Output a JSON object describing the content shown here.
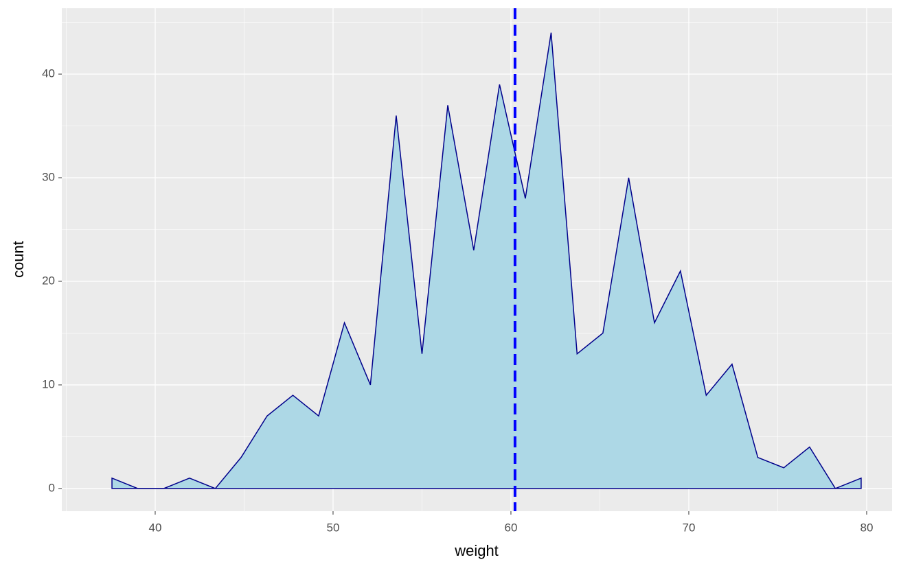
{
  "chart_data": {
    "type": "area",
    "xlabel": "weight",
    "ylabel": "count",
    "x": [
      37.57,
      39.02,
      40.48,
      41.93,
      43.38,
      44.83,
      46.29,
      47.74,
      49.19,
      50.64,
      52.1,
      53.55,
      55.0,
      56.45,
      57.91,
      59.36,
      60.81,
      62.26,
      63.72,
      65.17,
      66.62,
      68.07,
      69.53,
      70.98,
      72.43,
      73.88,
      75.34,
      76.79,
      78.24,
      79.69
    ],
    "values": [
      1,
      0,
      0,
      1,
      0,
      3,
      7,
      9,
      7,
      16,
      10,
      36,
      13,
      37,
      23,
      39,
      28,
      44,
      13,
      15,
      30,
      16,
      21,
      9,
      12,
      3,
      2,
      4,
      0,
      1
    ],
    "fill": "#add8e6",
    "color": "#00008b",
    "vline": 60.23,
    "vline_color": "#0000ff",
    "xlim": [
      34.75,
      81.43
    ],
    "xticks": [
      40,
      50,
      60,
      70,
      80
    ],
    "ylim": [
      -2.19,
      46.36
    ],
    "yticks": [
      0,
      10,
      20,
      30,
      40
    ],
    "grid": true
  }
}
